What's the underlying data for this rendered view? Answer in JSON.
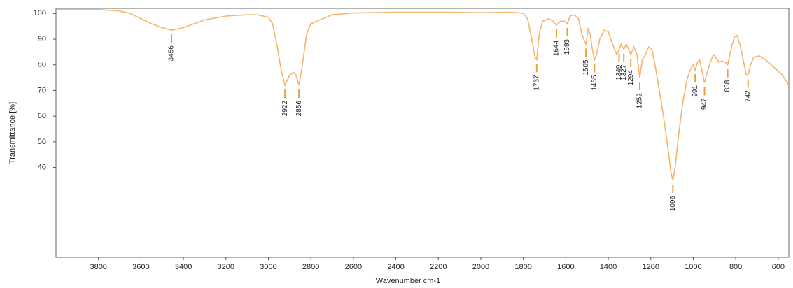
{
  "chart_data": {
    "type": "line",
    "xlabel": "Wavenumber cm-1",
    "ylabel": "Transmittance [%]",
    "xlim": [
      4000,
      550
    ],
    "ylim": [
      5,
      102
    ],
    "xticks": [
      3800,
      3600,
      3400,
      3200,
      3000,
      2800,
      2600,
      2400,
      2200,
      2000,
      1800,
      1600,
      1400,
      1200,
      1000,
      800,
      600
    ],
    "yticks": [
      40,
      50,
      60,
      70,
      80,
      90,
      100
    ],
    "color": "#f5b46c",
    "peak_color": "#f0a030",
    "x": [
      4000,
      3900,
      3800,
      3700,
      3650,
      3600,
      3550,
      3500,
      3456,
      3400,
      3350,
      3300,
      3200,
      3100,
      3050,
      3000,
      2980,
      2960,
      2940,
      2922,
      2900,
      2880,
      2870,
      2856,
      2840,
      2820,
      2800,
      2700,
      2600,
      2400,
      2200,
      2000,
      1850,
      1800,
      1780,
      1760,
      1745,
      1737,
      1725,
      1710,
      1680,
      1660,
      1644,
      1625,
      1605,
      1593,
      1580,
      1560,
      1540,
      1525,
      1515,
      1505,
      1495,
      1485,
      1475,
      1465,
      1455,
      1440,
      1420,
      1400,
      1380,
      1360,
      1349,
      1340,
      1327,
      1315,
      1304,
      1294,
      1280,
      1265,
      1252,
      1240,
      1225,
      1210,
      1195,
      1180,
      1160,
      1140,
      1120,
      1105,
      1096,
      1085,
      1070,
      1050,
      1030,
      1015,
      1000,
      991,
      980,
      970,
      960,
      947,
      935,
      920,
      905,
      895,
      880,
      865,
      850,
      838,
      820,
      805,
      795,
      780,
      765,
      750,
      742,
      730,
      715,
      690,
      660,
      620,
      580,
      550
    ],
    "values": [
      101.5,
      101.5,
      101.5,
      101,
      100,
      98,
      96,
      94.5,
      93.5,
      94.5,
      96,
      97.5,
      99,
      99.5,
      99.5,
      98.5,
      96,
      88,
      78,
      72,
      76,
      77,
      76,
      72,
      80,
      92,
      96,
      99.5,
      100.2,
      100.5,
      100.5,
      100.3,
      100.5,
      100,
      98,
      90,
      83,
      82,
      92,
      97,
      98,
      97,
      95.5,
      97,
      97,
      96,
      99,
      99.5,
      98,
      92,
      90,
      88,
      94,
      92,
      86,
      82,
      84,
      90,
      93.5,
      93,
      88,
      84,
      86,
      88,
      86,
      88,
      86,
      84,
      87,
      84,
      75,
      82,
      84,
      87,
      86,
      80,
      70,
      60,
      48,
      38,
      35,
      40,
      52,
      65,
      74,
      78,
      80,
      78,
      81,
      82,
      78,
      73,
      77,
      81,
      84,
      83,
      81,
      81.5,
      81,
      80,
      87,
      91,
      91.5,
      88,
      82,
      76,
      76,
      80,
      83,
      83.5,
      82,
      79,
      76,
      72
    ],
    "peaks": [
      {
        "x": 3456,
        "y": 93.5
      },
      {
        "x": 2922,
        "y": 72
      },
      {
        "x": 2856,
        "y": 72
      },
      {
        "x": 1737,
        "y": 82
      },
      {
        "x": 1644,
        "y": 95.5
      },
      {
        "x": 1593,
        "y": 96
      },
      {
        "x": 1505,
        "y": 88
      },
      {
        "x": 1465,
        "y": 82
      },
      {
        "x": 1349,
        "y": 86
      },
      {
        "x": 1327,
        "y": 86
      },
      {
        "x": 1294,
        "y": 84
      },
      {
        "x": 1252,
        "y": 75
      },
      {
        "x": 1096,
        "y": 35
      },
      {
        "x": 991,
        "y": 78
      },
      {
        "x": 947,
        "y": 73
      },
      {
        "x": 838,
        "y": 80
      },
      {
        "x": 742,
        "y": 76
      }
    ]
  }
}
